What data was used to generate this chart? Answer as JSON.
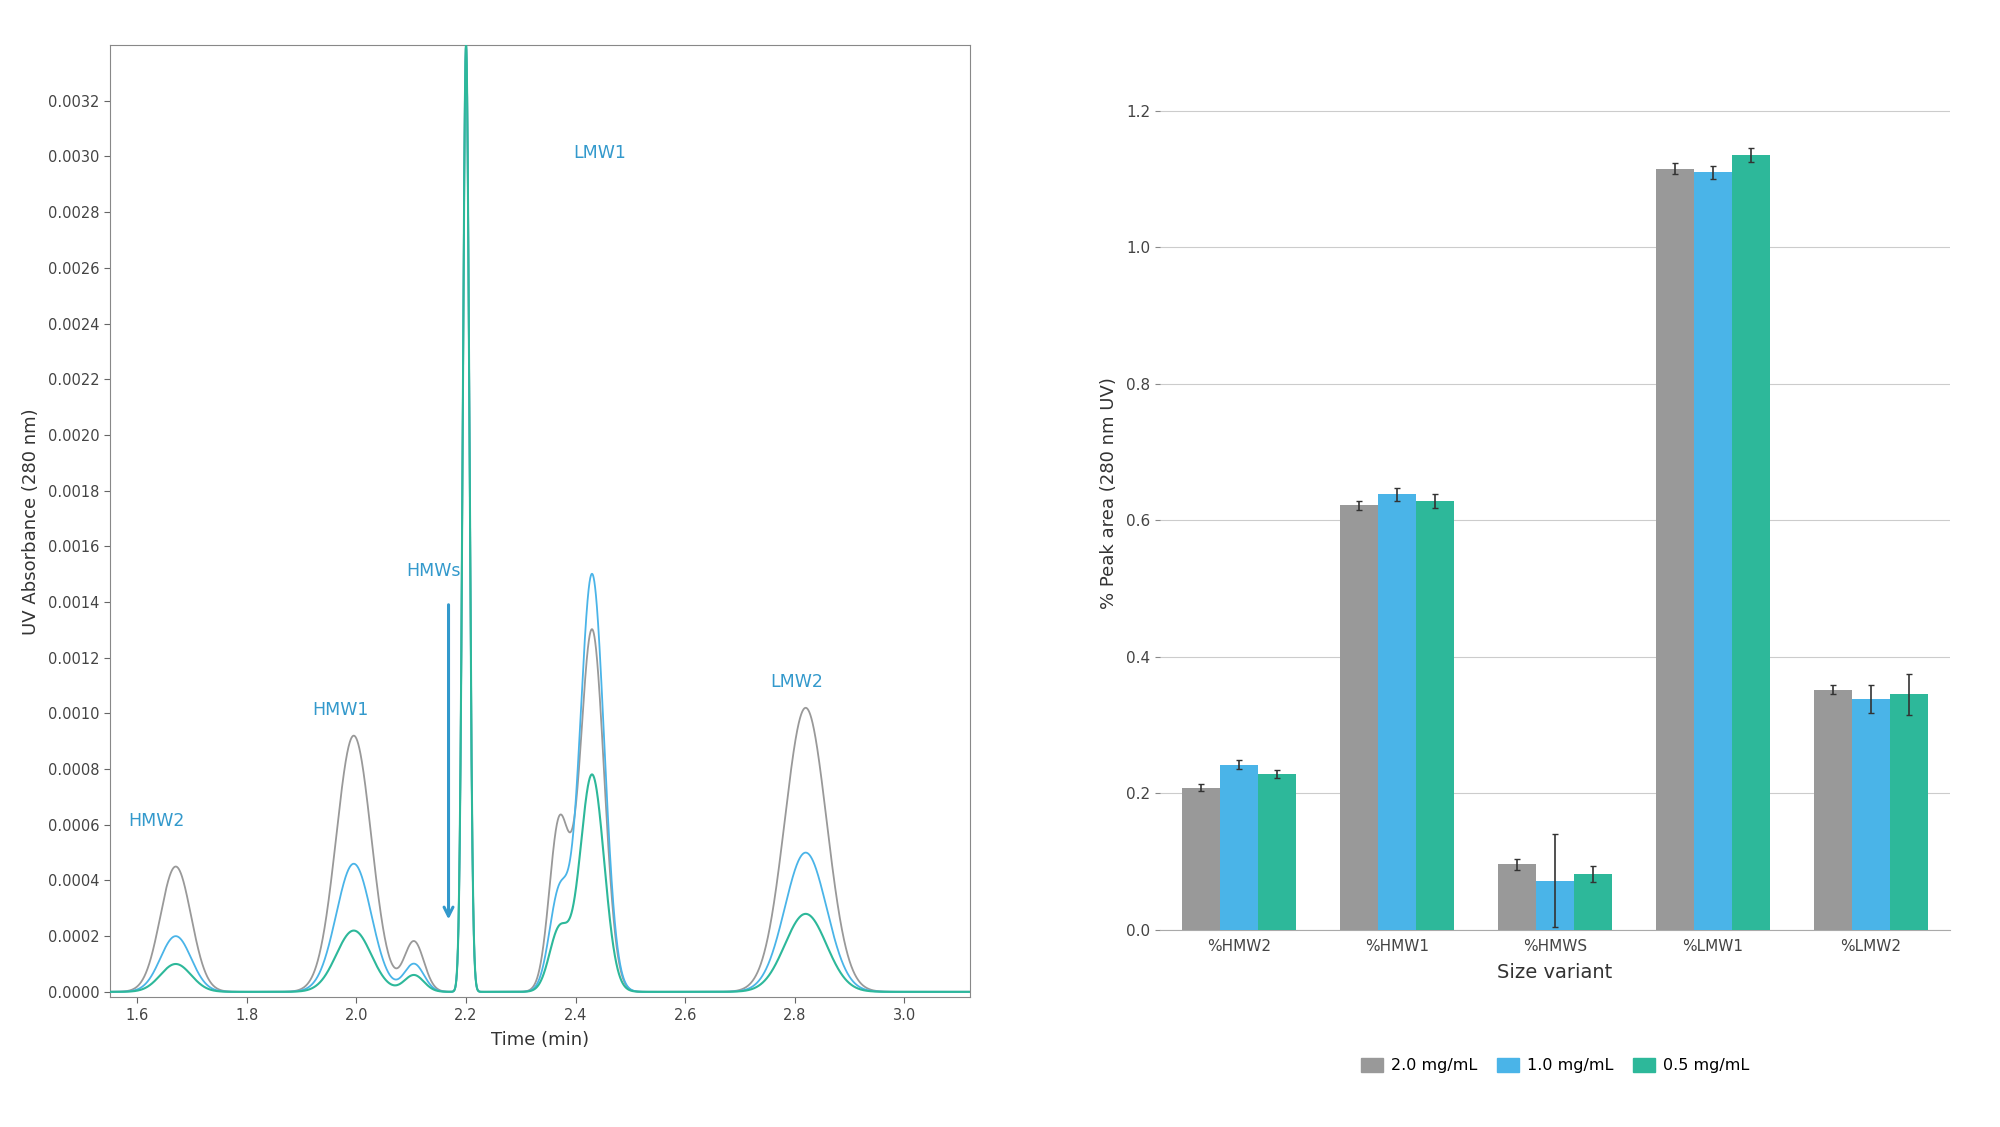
{
  "chromatogram": {
    "xlim": [
      1.55,
      3.12
    ],
    "ylim": [
      -2e-05,
      0.0034
    ],
    "yticks": [
      0.0,
      0.0002,
      0.0004,
      0.0006,
      0.0008,
      0.001,
      0.0012,
      0.0014,
      0.0016,
      0.0018,
      0.002,
      0.0022,
      0.0024,
      0.0026,
      0.0028,
      0.003,
      0.0032
    ],
    "xticks": [
      1.6,
      1.8,
      2.0,
      2.2,
      2.4,
      2.6,
      2.8,
      3.0
    ],
    "xlabel": "Time (min)",
    "ylabel": "UV Absorbance (280 nm)",
    "color_gray": "#999999",
    "color_blue": "#4ab4e8",
    "color_teal": "#2db89a"
  },
  "barchart": {
    "categories": [
      "%HMW2",
      "%HMW1",
      "%HMWS",
      "%LMW1",
      "%LMW2"
    ],
    "values_gray": [
      0.208,
      0.622,
      0.096,
      1.115,
      0.352
    ],
    "values_blue": [
      0.242,
      0.638,
      0.072,
      1.11,
      0.338
    ],
    "values_teal": [
      0.228,
      0.628,
      0.082,
      1.135,
      0.345
    ],
    "errors_gray": [
      0.005,
      0.007,
      0.008,
      0.008,
      0.006
    ],
    "errors_blue": [
      0.007,
      0.01,
      0.068,
      0.01,
      0.02
    ],
    "errors_teal": [
      0.006,
      0.01,
      0.012,
      0.01,
      0.03
    ],
    "color_gray": "#999999",
    "color_blue": "#4ab4e8",
    "color_teal": "#2db89a",
    "label_gray": "2.0 mg/mL",
    "label_blue": "1.0 mg/mL",
    "label_teal": "0.5 mg/mL",
    "ylim": [
      0,
      1.28
    ],
    "yticks": [
      0.0,
      0.2,
      0.4,
      0.6,
      0.8,
      1.0,
      1.2
    ],
    "xlabel": "Size variant",
    "ylabel": "% Peak area (280 nm UV)"
  }
}
